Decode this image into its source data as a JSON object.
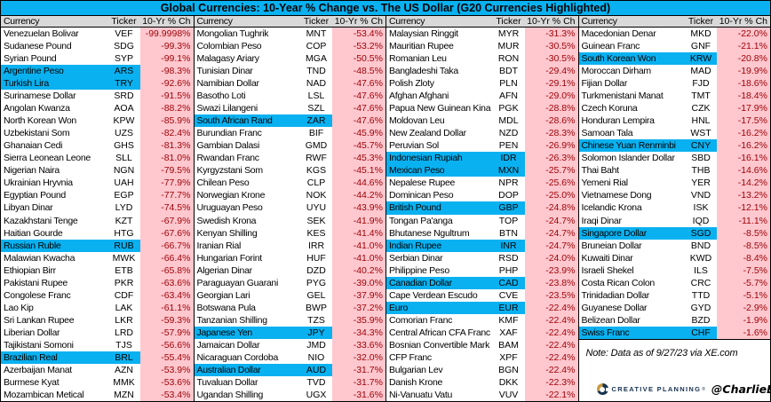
{
  "chart_data": {
    "type": "table",
    "title": "Global Currencies: 10-Year % Change vs. The US Dollar (G20 Currencies Highlighted)",
    "columns": [
      "Currency",
      "Ticker",
      "10-Yr % Ch"
    ],
    "highlight_meaning": "G20 currency",
    "g20_highlighted_tickers": [
      "ARS",
      "TRY",
      "RUB",
      "BRL",
      "ZAR",
      "JPY",
      "AUD",
      "IDR",
      "MXN",
      "GBP",
      "INR",
      "CAD",
      "EUR",
      "KRW",
      "CNY",
      "SGD",
      "CHF"
    ],
    "groups": [
      [
        [
          "Venezuelan Bolivar",
          "VEF",
          "-99.9998%",
          0
        ],
        [
          "Sudanese Pound",
          "SDG",
          "-99.3%",
          0
        ],
        [
          "Syrian Pound",
          "SYP",
          "-99.1%",
          0
        ],
        [
          "Argentine Peso",
          "ARS",
          "-98.3%",
          1
        ],
        [
          "Turkish Lira",
          "TRY",
          "-92.6%",
          1
        ],
        [
          "Surinamese Dollar",
          "SRD",
          "-91.5%",
          0
        ],
        [
          "Angolan Kwanza",
          "AOA",
          "-88.2%",
          0
        ],
        [
          "North Korean Won",
          "KPW",
          "-85.9%",
          0
        ],
        [
          "Uzbekistani Som",
          "UZS",
          "-82.4%",
          0
        ],
        [
          "Ghanaian Cedi",
          "GHS",
          "-81.3%",
          0
        ],
        [
          "Sierra Leonean Leone",
          "SLL",
          "-81.0%",
          0
        ],
        [
          "Nigerian Naira",
          "NGN",
          "-79.5%",
          0
        ],
        [
          "Ukrainian Hryvnia",
          "UAH",
          "-77.9%",
          0
        ],
        [
          "Egyptian Pound",
          "EGP",
          "-77.7%",
          0
        ],
        [
          "Libyan Dinar",
          "LYD",
          "-74.5%",
          0
        ],
        [
          "Kazakhstani Tenge",
          "KZT",
          "-67.9%",
          0
        ],
        [
          "Haitian Gourde",
          "HTG",
          "-67.6%",
          0
        ],
        [
          "Russian Ruble",
          "RUB",
          "-66.7%",
          1
        ],
        [
          "Malawian Kwacha",
          "MWK",
          "-66.4%",
          0
        ],
        [
          "Ethiopian Birr",
          "ETB",
          "-65.8%",
          0
        ],
        [
          "Pakistani Rupee",
          "PKR",
          "-63.6%",
          0
        ],
        [
          "Congolese Franc",
          "CDF",
          "-63.4%",
          0
        ],
        [
          "Lao Kip",
          "LAK",
          "-61.1%",
          0
        ],
        [
          "Sri Lankan Rupee",
          "LKR",
          "-59.3%",
          0
        ],
        [
          "Liberian Dollar",
          "LRD",
          "-57.9%",
          0
        ],
        [
          "Tajikistani Somoni",
          "TJS",
          "-56.6%",
          0
        ],
        [
          "Brazilian Real",
          "BRL",
          "-55.4%",
          1
        ],
        [
          "Azerbaijan Manat",
          "AZN",
          "-53.9%",
          0
        ],
        [
          "Burmese Kyat",
          "MMK",
          "-53.6%",
          0
        ],
        [
          "Mozambican Metical",
          "MZN",
          "-53.4%",
          0
        ]
      ],
      [
        [
          "Mongolian Tughrik",
          "MNT",
          "-53.4%",
          0
        ],
        [
          "Colombian Peso",
          "COP",
          "-53.2%",
          0
        ],
        [
          "Malagasy Ariary",
          "MGA",
          "-50.5%",
          0
        ],
        [
          "Tunisian Dinar",
          "TND",
          "-48.5%",
          0
        ],
        [
          "Namibian Dollar",
          "NAD",
          "-47.6%",
          0
        ],
        [
          "Basotho Loti",
          "LSL",
          "-47.6%",
          0
        ],
        [
          "Swazi Lilangeni",
          "SZL",
          "-47.6%",
          0
        ],
        [
          "South African Rand",
          "ZAR",
          "-47.6%",
          1
        ],
        [
          "Burundian Franc",
          "BIF",
          "-45.9%",
          0
        ],
        [
          "Gambian Dalasi",
          "GMD",
          "-45.7%",
          0
        ],
        [
          "Rwandan Franc",
          "RWF",
          "-45.3%",
          0
        ],
        [
          "Kyrgyzstani Som",
          "KGS",
          "-45.1%",
          0
        ],
        [
          "Chilean Peso",
          "CLP",
          "-44.6%",
          0
        ],
        [
          "Norwegian Krone",
          "NOK",
          "-44.2%",
          0
        ],
        [
          "Uruguayan Peso",
          "UYU",
          "-43.9%",
          0
        ],
        [
          "Swedish Krona",
          "SEK",
          "-41.9%",
          0
        ],
        [
          "Kenyan Shilling",
          "KES",
          "-41.4%",
          0
        ],
        [
          "Iranian Rial",
          "IRR",
          "-41.0%",
          0
        ],
        [
          "Hungarian Forint",
          "HUF",
          "-41.0%",
          0
        ],
        [
          "Algerian Dinar",
          "DZD",
          "-40.2%",
          0
        ],
        [
          "Paraguayan Guarani",
          "PYG",
          "-39.0%",
          0
        ],
        [
          "Georgian Lari",
          "GEL",
          "-37.9%",
          0
        ],
        [
          "Botswana Pula",
          "BWP",
          "-37.2%",
          0
        ],
        [
          "Tanzanian Shilling",
          "TZS",
          "-35.9%",
          0
        ],
        [
          "Japanese Yen",
          "JPY",
          "-34.3%",
          1
        ],
        [
          "Jamaican Dollar",
          "JMD",
          "-33.6%",
          0
        ],
        [
          "Nicaraguan Cordoba",
          "NIO",
          "-32.0%",
          0
        ],
        [
          "Australian Dollar",
          "AUD",
          "-31.7%",
          1
        ],
        [
          "Tuvaluan Dollar",
          "TVD",
          "-31.7%",
          0
        ],
        [
          "Ugandan Shilling",
          "UGX",
          "-31.6%",
          0
        ]
      ],
      [
        [
          "Malaysian Ringgit",
          "MYR",
          "-31.3%",
          0
        ],
        [
          "Mauritian Rupee",
          "MUR",
          "-30.5%",
          0
        ],
        [
          "Romanian Leu",
          "RON",
          "-30.5%",
          0
        ],
        [
          "Bangladeshi Taka",
          "BDT",
          "-29.4%",
          0
        ],
        [
          "Polish Zloty",
          "PLN",
          "-29.1%",
          0
        ],
        [
          "Afghan Afghani",
          "AFN",
          "-29.0%",
          0
        ],
        [
          "Papua New Guinean Kina",
          "PGK",
          "-28.8%",
          0
        ],
        [
          "Moldovan Leu",
          "MDL",
          "-28.6%",
          0
        ],
        [
          "New Zealand Dollar",
          "NZD",
          "-28.3%",
          0
        ],
        [
          "Peruvian Sol",
          "PEN",
          "-26.9%",
          0
        ],
        [
          "Indonesian Rupiah",
          "IDR",
          "-26.3%",
          1
        ],
        [
          "Mexican Peso",
          "MXN",
          "-25.7%",
          1
        ],
        [
          "Nepalese Rupee",
          "NPR",
          "-25.6%",
          0
        ],
        [
          "Dominican Peso",
          "DOP",
          "-25.0%",
          0
        ],
        [
          "British Pound",
          "GBP",
          "-24.8%",
          1
        ],
        [
          "Tongan Pa'anga",
          "TOP",
          "-24.7%",
          0
        ],
        [
          "Bhutanese Ngultrum",
          "BTN",
          "-24.7%",
          0
        ],
        [
          "Indian Rupee",
          "INR",
          "-24.7%",
          1
        ],
        [
          "Serbian Dinar",
          "RSD",
          "-24.0%",
          0
        ],
        [
          "Philippine Peso",
          "PHP",
          "-23.9%",
          0
        ],
        [
          "Canadian Dollar",
          "CAD",
          "-23.8%",
          1
        ],
        [
          "Cape Verdean Escudo",
          "CVE",
          "-23.5%",
          0
        ],
        [
          "Euro",
          "EUR",
          "-22.4%",
          1
        ],
        [
          "Comorian Franc",
          "KMF",
          "-22.4%",
          0
        ],
        [
          "Central African CFA Franc",
          "XAF",
          "-22.4%",
          0
        ],
        [
          "Bosnian Convertible Mark",
          "BAM",
          "-22.4%",
          0
        ],
        [
          "CFP Franc",
          "XPF",
          "-22.4%",
          0
        ],
        [
          "Bulgarian Lev",
          "BGN",
          "-22.4%",
          0
        ],
        [
          "Danish Krone",
          "DKK",
          "-22.3%",
          0
        ],
        [
          "Ni-Vanuatu Vatu",
          "VUV",
          "-22.1%",
          0
        ]
      ],
      [
        [
          "Macedonian Denar",
          "MKD",
          "-22.0%",
          0
        ],
        [
          "Guinean Franc",
          "GNF",
          "-21.1%",
          0
        ],
        [
          "South Korean Won",
          "KRW",
          "-20.8%",
          1
        ],
        [
          "Moroccan Dirham",
          "MAD",
          "-19.9%",
          0
        ],
        [
          "Fijian Dollar",
          "FJD",
          "-18.6%",
          0
        ],
        [
          "Turkmenistani Manat",
          "TMT",
          "-18.4%",
          0
        ],
        [
          "Czech Koruna",
          "CZK",
          "-17.9%",
          0
        ],
        [
          "Honduran Lempira",
          "HNL",
          "-17.5%",
          0
        ],
        [
          "Samoan Tala",
          "WST",
          "-16.2%",
          0
        ],
        [
          "Chinese Yuan Renminbi",
          "CNY",
          "-16.2%",
          1
        ],
        [
          "Solomon Islander Dollar",
          "SBD",
          "-16.1%",
          0
        ],
        [
          "Thai Baht",
          "THB",
          "-14.6%",
          0
        ],
        [
          "Yemeni Rial",
          "YER",
          "-14.2%",
          0
        ],
        [
          "Vietnamese Dong",
          "VND",
          "-13.2%",
          0
        ],
        [
          "Icelandic Krona",
          "ISK",
          "-12.1%",
          0
        ],
        [
          "Iraqi Dinar",
          "IQD",
          "-11.1%",
          0
        ],
        [
          "Singapore Dollar",
          "SGD",
          "-8.5%",
          1
        ],
        [
          "Bruneian Dollar",
          "BND",
          "-8.5%",
          0
        ],
        [
          "Kuwaiti Dinar",
          "KWD",
          "-8.4%",
          0
        ],
        [
          "Israeli Shekel",
          "ILS",
          "-7.5%",
          0
        ],
        [
          "Costa Rican Colon",
          "CRC",
          "-5.7%",
          0
        ],
        [
          "Trinidadian Dollar",
          "TTD",
          "-5.1%",
          0
        ],
        [
          "Guyanese Dollar",
          "GYD",
          "-2.9%",
          0
        ],
        [
          "Belizean Dollar",
          "BZD",
          "-1.9%",
          0
        ],
        [
          "Swiss Franc",
          "CHF",
          "-1.6%",
          1
        ]
      ]
    ],
    "note": "Note: Data as of 9/27/23 via XE.com",
    "branding": {
      "logo_text": "CREATIVE PLANNING",
      "logo_mark": "®",
      "handle": "@CharlieBilello"
    }
  },
  "colors": {
    "highlight_cyan": "#0ab1f0",
    "title_bg": "#0ab1f0",
    "value_cell_bg": "#FFC7CE",
    "value_text": "#9C0006",
    "header_bg": "#D9D9D9",
    "logo_navy": "#16324F",
    "logo_gold": "#C99A3C"
  }
}
